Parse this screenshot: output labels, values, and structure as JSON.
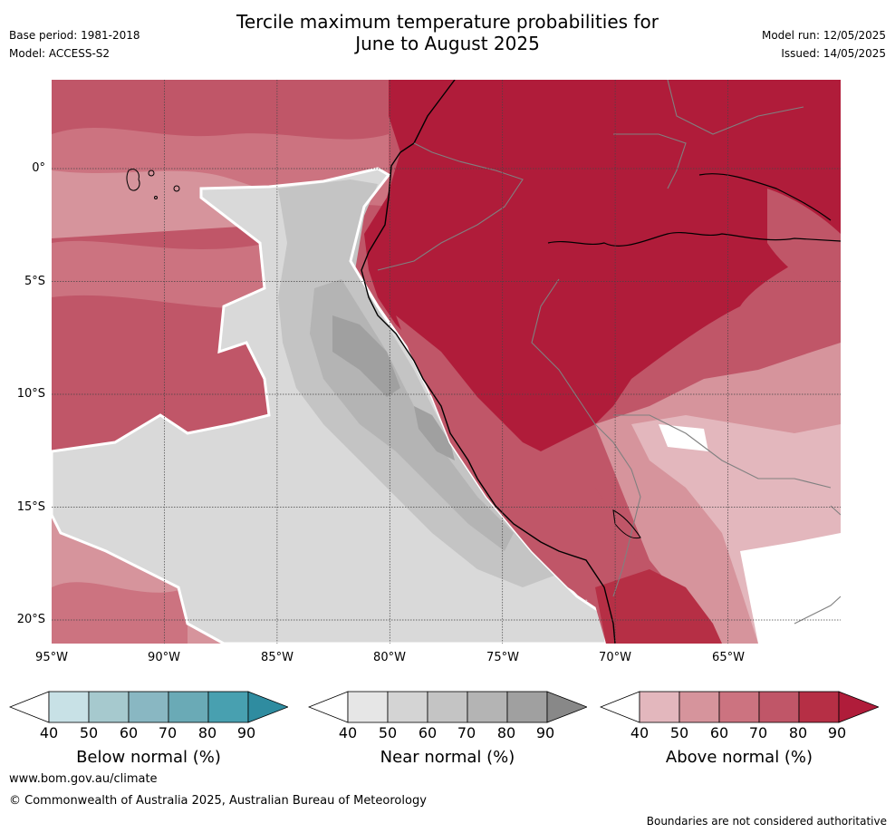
{
  "title": {
    "line1": "Tercile maximum temperature probabilities for",
    "line2": "June to August 2025"
  },
  "header_left": {
    "base_period": "Base period: 1981-2018",
    "model": "Model: ACCESS-S2"
  },
  "header_right": {
    "model_run": "Model run: 12/05/2025",
    "issued": "Issued: 14/05/2025"
  },
  "map": {
    "longitude_labels": [
      "95°W",
      "90°W",
      "85°W",
      "80°W",
      "75°W",
      "70°W",
      "65°W"
    ],
    "latitude_labels": [
      "0°",
      "5°S",
      "10°S",
      "15°S",
      "20°S"
    ]
  },
  "colorbars": [
    {
      "title": "Below normal (%)",
      "ticks": [
        "40",
        "50",
        "60",
        "70",
        "80",
        "90"
      ],
      "colors": [
        "#ffffff",
        "#c8e1e6",
        "#a6c9ce",
        "#89b7c2",
        "#6aaab6",
        "#48a0b0",
        "#2f8ca0"
      ]
    },
    {
      "title": "Near normal (%)",
      "ticks": [
        "40",
        "50",
        "60",
        "70",
        "80",
        "90"
      ],
      "colors": [
        "#ffffff",
        "#e6e6e6",
        "#d4d4d4",
        "#c4c4c4",
        "#b4b4b4",
        "#a0a0a0",
        "#888888"
      ]
    },
    {
      "title": "Above normal (%)",
      "ticks": [
        "40",
        "50",
        "60",
        "70",
        "80",
        "90"
      ],
      "colors": [
        "#ffffff",
        "#e3b7bd",
        "#d6949c",
        "#cc7380",
        "#c05668",
        "#b62f45",
        "#b01c3a"
      ]
    }
  ],
  "footer": {
    "url": "www.bom.gov.au/climate",
    "copyright": "© Commonwealth of Australia 2025, Australian Bureau of Meteorology",
    "disclaimer": "Boundaries are not considered authoritative"
  }
}
